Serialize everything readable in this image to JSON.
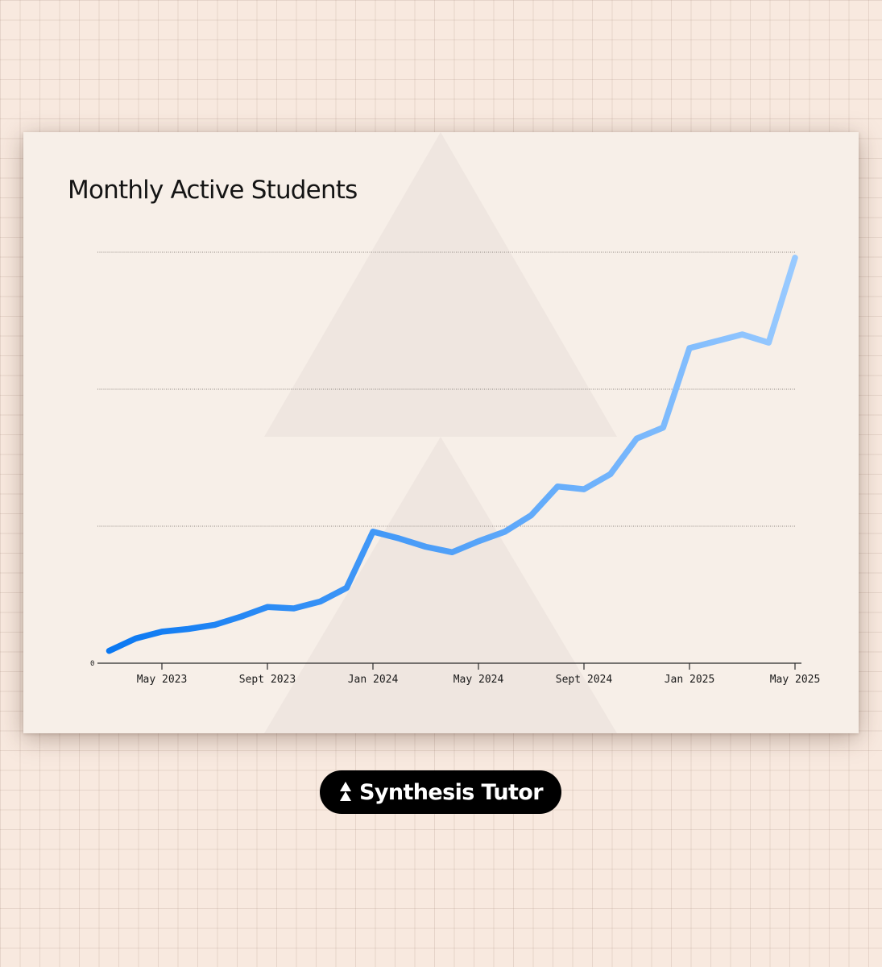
{
  "brand": {
    "name": "Synthesis Tutor",
    "logo_icon": "triangle-stack-icon"
  },
  "colors": {
    "line_start": "#0a78f2",
    "line_end": "#99caff",
    "card_background": "#f7efe8",
    "page_background": "#f8e9df"
  },
  "chart_data": {
    "type": "line",
    "title": "Monthly Active Students",
    "xlabel": "",
    "ylabel": "",
    "y_tick_labels": [
      "0"
    ],
    "ylim": [
      0,
      300
    ],
    "y_gridlines": [
      100,
      200,
      300
    ],
    "grid": "horizontal-dotted",
    "x_ticks": [
      {
        "label": "May 2023",
        "x": "2023-05"
      },
      {
        "label": "Sept 2023",
        "x": "2023-09"
      },
      {
        "label": "Jan 2024",
        "x": "2024-01"
      },
      {
        "label": "May 2024",
        "x": "2024-05"
      },
      {
        "label": "Sept 2024",
        "x": "2024-09"
      },
      {
        "label": "Jan 2025",
        "x": "2025-01"
      },
      {
        "label": "May 2025",
        "x": "2025-05"
      }
    ],
    "series": [
      {
        "x": [
          "2023-03",
          "2023-04",
          "2023-05",
          "2023-06",
          "2023-07",
          "2023-08",
          "2023-09",
          "2023-10",
          "2023-11",
          "2023-12",
          "2024-01",
          "2024-02",
          "2024-03",
          "2024-04",
          "2024-05",
          "2024-06",
          "2024-07",
          "2024-08",
          "2024-09",
          "2024-10",
          "2024-11",
          "2024-12",
          "2025-01",
          "2025-02",
          "2025-03",
          "2025-04",
          "2025-05"
        ],
        "values": [
          9,
          18,
          23,
          25,
          28,
          34,
          41,
          40,
          45,
          55,
          96,
          91,
          85,
          81,
          89,
          96,
          108,
          129,
          127,
          138,
          164,
          172,
          230,
          235,
          240,
          234,
          296
        ]
      }
    ]
  }
}
